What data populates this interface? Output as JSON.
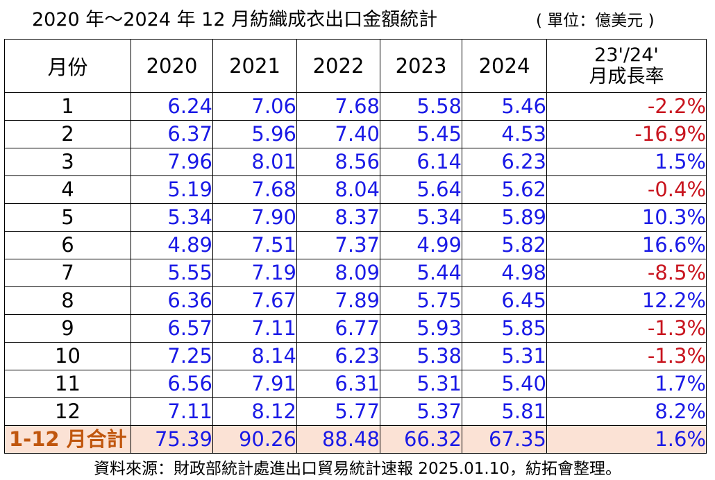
{
  "header": {
    "title": "2020 年～2024 年 12 月紡織成衣出口金額統計",
    "unit": "( 單位：億美元 )"
  },
  "chart_data": {
    "type": "table",
    "columns": {
      "month": "月份",
      "years": [
        "2020",
        "2021",
        "2022",
        "2023",
        "2024"
      ],
      "rate_line1": "23'/24'",
      "rate_line2": "月成長率"
    },
    "rows": [
      {
        "month": "1",
        "values": [
          "6.24",
          "7.06",
          "7.68",
          "5.58",
          "5.46"
        ],
        "rate": "-2.2%"
      },
      {
        "month": "2",
        "values": [
          "6.37",
          "5.96",
          "7.40",
          "5.45",
          "4.53"
        ],
        "rate": "-16.9%"
      },
      {
        "month": "3",
        "values": [
          "7.96",
          "8.01",
          "8.56",
          "6.14",
          "6.23"
        ],
        "rate": "1.5%"
      },
      {
        "month": "4",
        "values": [
          "5.19",
          "7.68",
          "8.04",
          "5.64",
          "5.62"
        ],
        "rate": "-0.4%"
      },
      {
        "month": "5",
        "values": [
          "5.34",
          "7.90",
          "8.37",
          "5.34",
          "5.89"
        ],
        "rate": "10.3%"
      },
      {
        "month": "6",
        "values": [
          "4.89",
          "7.51",
          "7.37",
          "4.99",
          "5.82"
        ],
        "rate": "16.6%"
      },
      {
        "month": "7",
        "values": [
          "5.55",
          "7.19",
          "8.09",
          "5.44",
          "4.98"
        ],
        "rate": "-8.5%"
      },
      {
        "month": "8",
        "values": [
          "6.36",
          "7.67",
          "7.89",
          "5.75",
          "6.45"
        ],
        "rate": "12.2%"
      },
      {
        "month": "9",
        "values": [
          "6.57",
          "7.11",
          "6.77",
          "5.93",
          "5.85"
        ],
        "rate": "-1.3%"
      },
      {
        "month": "10",
        "values": [
          "7.25",
          "8.14",
          "6.23",
          "5.38",
          "5.31"
        ],
        "rate": "-1.3%"
      },
      {
        "month": "11",
        "values": [
          "6.56",
          "7.91",
          "6.31",
          "5.31",
          "5.40"
        ],
        "rate": "1.7%"
      },
      {
        "month": "12",
        "values": [
          "7.11",
          "8.12",
          "5.77",
          "5.37",
          "5.81"
        ],
        "rate": "8.2%"
      }
    ],
    "total": {
      "month": "1-12 月合計",
      "values": [
        "75.39",
        "90.26",
        "88.48",
        "66.32",
        "67.35"
      ],
      "rate": "1.6%"
    }
  },
  "colors": {
    "value_text": "#1a1ae6",
    "negative_rate": "#c8141e",
    "positive_rate": "#1a1ae6",
    "total_label": "#c0560e",
    "total_background": "#fbe2d5"
  },
  "footer": {
    "source": "資料來源：財政部統計處進出口貿易統計速報 2025.01.10，紡拓會整理。"
  }
}
